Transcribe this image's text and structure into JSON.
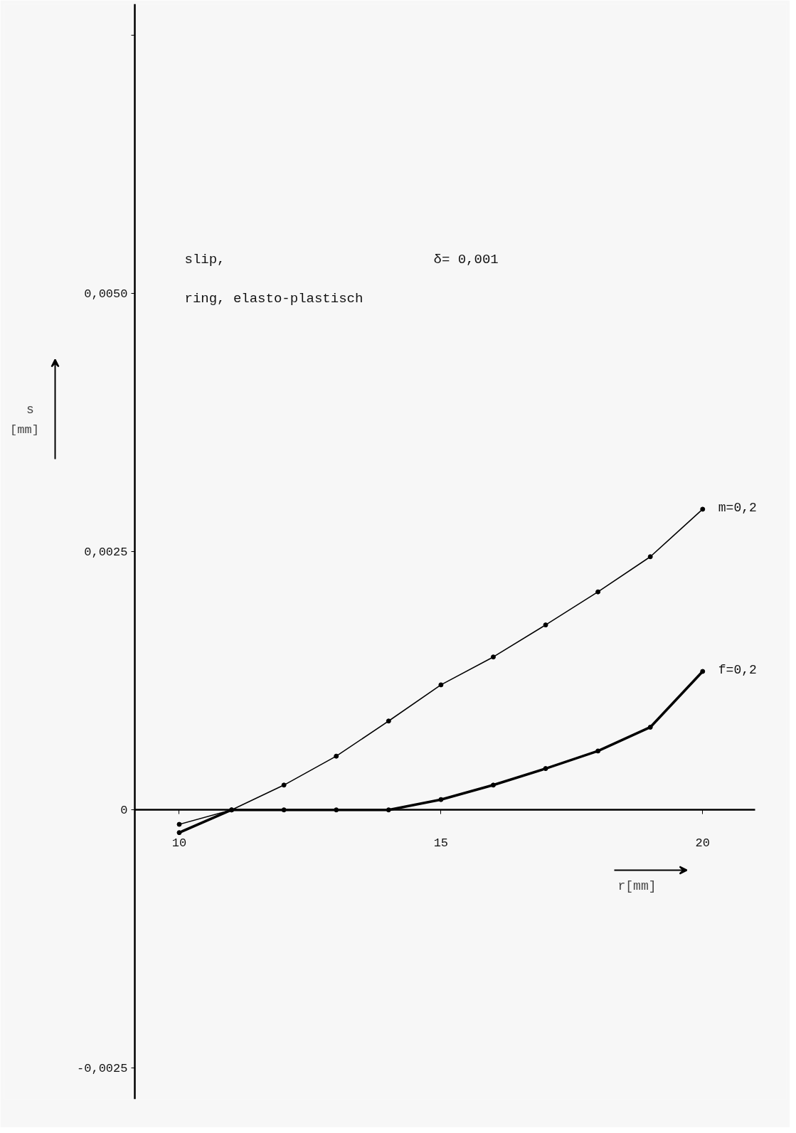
{
  "chart_data": {
    "type": "line",
    "xlabel": "r[mm]",
    "ylabel": "s [mm]",
    "annotations": [
      "slip,",
      "δ= 0,001",
      "ring, elasto-plastisch"
    ],
    "x": [
      10,
      11,
      12,
      13,
      14,
      15,
      16,
      17,
      18,
      19,
      20
    ],
    "series": [
      {
        "name": "m=0,2",
        "color": "#000000",
        "values": [
          -0.00014,
          0,
          0.00024,
          0.00052,
          0.00086,
          0.00121,
          0.00148,
          0.00179,
          0.00211,
          0.00245,
          0.00291
        ]
      },
      {
        "name": "f=0,2",
        "color": "#000000",
        "values": [
          -0.00022,
          0,
          0,
          0,
          0,
          0.0001,
          0.00024,
          0.0004,
          0.00057,
          0.0008,
          0.00134
        ]
      }
    ],
    "xlim": [
      9.15,
      21
    ],
    "ylim": [
      -0.0028,
      0.0078
    ],
    "xticks": [
      10,
      15,
      20
    ],
    "yticks": [
      {
        "value": -0.0025,
        "label": "-0,0025"
      },
      0,
      {
        "value": 0.0025,
        "label": "0,0025"
      },
      {
        "value": 0.005,
        "label": "0,0050"
      },
      {
        "value": 0.0075,
        "label": null
      }
    ],
    "marker": "circle",
    "line_style": "solid",
    "grid": false
  }
}
